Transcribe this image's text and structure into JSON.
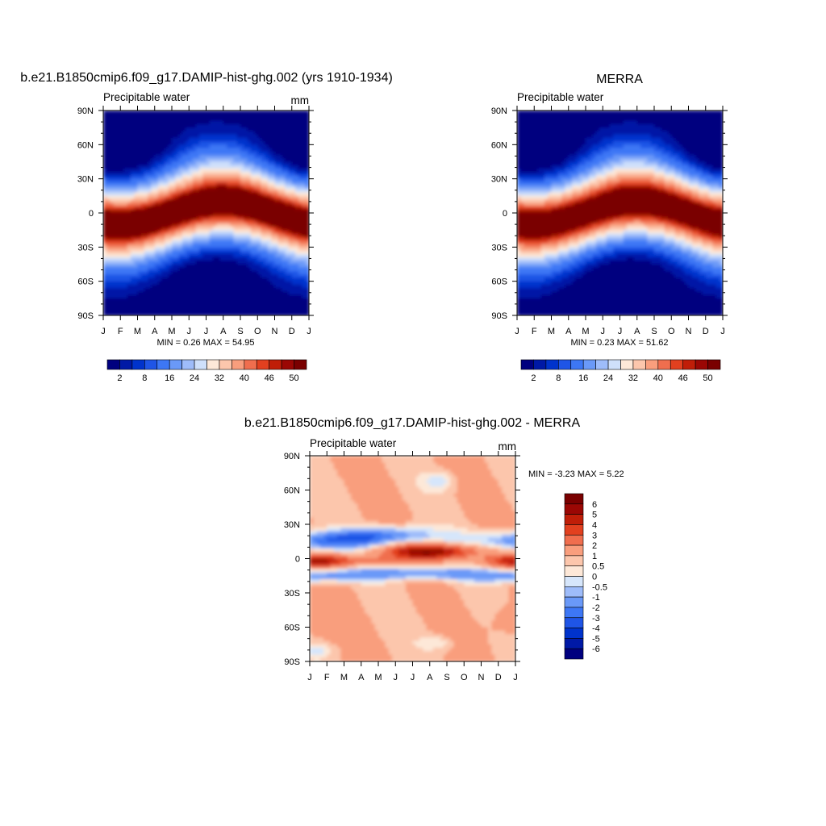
{
  "chart_data": [
    {
      "type": "heatmap",
      "title": "b.e21.B1850cmip6.f09_g17.DAMIP-hist-ghg.002 (yrs 1910-1934)",
      "left_label": "Precipitable water",
      "right_label": "mm",
      "x_tick_labels": [
        "J",
        "F",
        "M",
        "A",
        "M",
        "J",
        "J",
        "A",
        "S",
        "O",
        "N",
        "D",
        "J"
      ],
      "y_tick_labels": [
        "90N",
        "60N",
        "30N",
        "0",
        "30S",
        "60S",
        "90S"
      ],
      "minmax_text": "MIN =   0.26 MAX =  54.95",
      "min": 0.26,
      "max": 54.95,
      "colorbar": {
        "orientation": "horizontal",
        "levels": [
          2,
          5,
          8,
          11,
          16,
          20,
          24,
          28,
          32,
          36,
          40,
          43,
          46,
          48,
          50
        ],
        "labels": [
          "2",
          "8",
          "16",
          "24",
          "32",
          "40",
          "46",
          "50"
        ],
        "colors": [
          "#00007f",
          "#0019a6",
          "#0033cc",
          "#1f55e6",
          "#3d77f5",
          "#6a99f8",
          "#9ebcfa",
          "#cfe0fb",
          "#fde8d8",
          "#fcc6ac",
          "#f99e7d",
          "#f06e4e",
          "#e2401f",
          "#c01e08",
          "#9b0704",
          "#7a0000"
        ]
      }
    },
    {
      "type": "heatmap",
      "title": "MERRA",
      "left_label": "Precipitable water",
      "right_label": "",
      "x_tick_labels": [
        "J",
        "F",
        "M",
        "A",
        "M",
        "J",
        "J",
        "A",
        "S",
        "O",
        "N",
        "D",
        "J"
      ],
      "y_tick_labels": [
        "90N",
        "60N",
        "30N",
        "0",
        "30S",
        "60S",
        "90S"
      ],
      "minmax_text": "MIN =   0.23 MAX =  51.62",
      "min": 0.23,
      "max": 51.62,
      "colorbar": {
        "orientation": "horizontal",
        "levels": [
          2,
          5,
          8,
          11,
          16,
          20,
          24,
          28,
          32,
          36,
          40,
          43,
          46,
          48,
          50
        ],
        "labels": [
          "2",
          "8",
          "16",
          "24",
          "32",
          "40",
          "46",
          "50"
        ],
        "colors": [
          "#00007f",
          "#0019a6",
          "#0033cc",
          "#1f55e6",
          "#3d77f5",
          "#6a99f8",
          "#9ebcfa",
          "#cfe0fb",
          "#fde8d8",
          "#fcc6ac",
          "#f99e7d",
          "#f06e4e",
          "#e2401f",
          "#c01e08",
          "#9b0704",
          "#7a0000"
        ]
      }
    },
    {
      "type": "heatmap",
      "title": "b.e21.B1850cmip6.f09_g17.DAMIP-hist-ghg.002 - MERRA",
      "left_label": "Precipitable water",
      "right_label": "mm",
      "x_tick_labels": [
        "J",
        "F",
        "M",
        "A",
        "M",
        "J",
        "J",
        "A",
        "S",
        "O",
        "N",
        "D",
        "J"
      ],
      "y_tick_labels": [
        "90N",
        "60N",
        "30N",
        "0",
        "30S",
        "60S",
        "90S"
      ],
      "minmax_text": "MIN =  -3.23 MAX =   5.22",
      "min": -3.23,
      "max": 5.22,
      "colorbar": {
        "orientation": "vertical",
        "levels": [
          -6,
          -5,
          -4,
          -3,
          -2,
          -1,
          -0.5,
          0,
          0.5,
          1,
          2,
          3,
          4,
          5,
          6
        ],
        "labels": [
          "6",
          "5",
          "4",
          "3",
          "2",
          "1",
          "0.5",
          "0",
          "-0.5",
          "-1",
          "-2",
          "-3",
          "-4",
          "-5",
          "-6"
        ],
        "colors": [
          "#00007f",
          "#0019a6",
          "#0033cc",
          "#1f55e6",
          "#3d77f5",
          "#6a99f8",
          "#9ebcfa",
          "#d6e6fb",
          "#fde8d8",
          "#fcc6ac",
          "#f99e7d",
          "#f06e4e",
          "#e2401f",
          "#c01e08",
          "#9b0704",
          "#7a0000"
        ]
      }
    }
  ]
}
